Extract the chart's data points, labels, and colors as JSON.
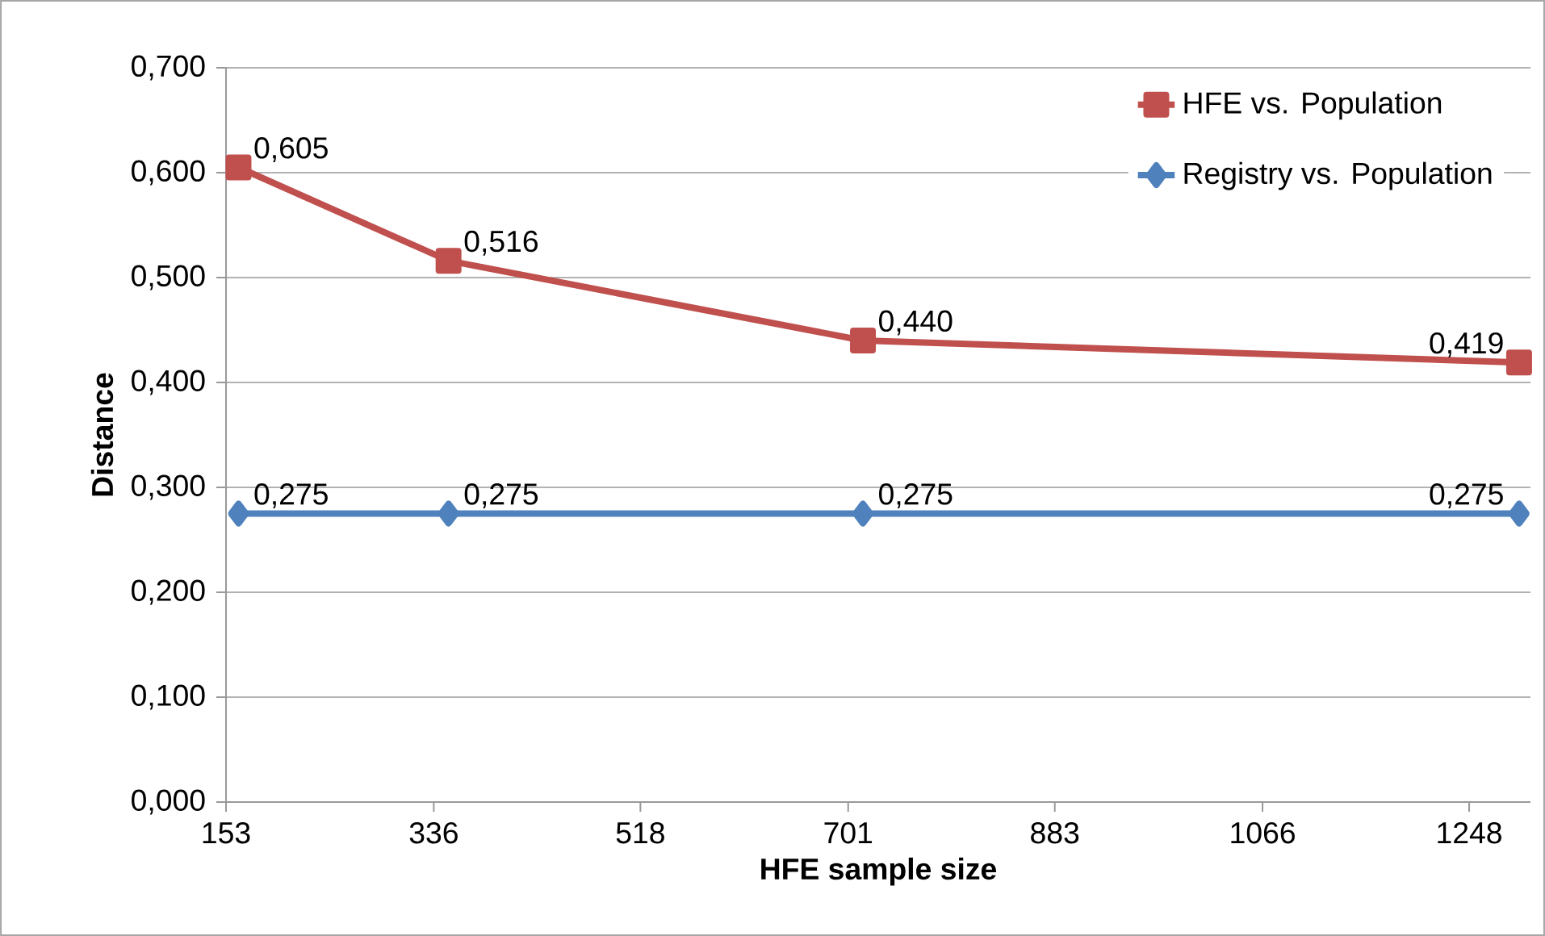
{
  "chart_data": {
    "type": "line",
    "xlabel": "HFE sample size",
    "ylabel": "Distance",
    "xlim": [
      153,
      1302
    ],
    "xticks": [
      153,
      336,
      518,
      701,
      883,
      1066,
      1248
    ],
    "ylim": [
      0,
      0.7
    ],
    "yticks": [
      {
        "value": 0,
        "label": "0,000"
      },
      {
        "value": 0.1,
        "label": "0,100"
      },
      {
        "value": 0.2,
        "label": "0,200"
      },
      {
        "value": 0.3,
        "label": "0,300"
      },
      {
        "value": 0.4,
        "label": "0,400"
      },
      {
        "value": 0.5,
        "label": "0,500"
      },
      {
        "value": 0.6,
        "label": "0,600"
      },
      {
        "value": 0.7,
        "label": "0,700"
      }
    ],
    "grid": "y",
    "legend": "top right",
    "series": [
      {
        "name": "HFE vs. Population",
        "color": "#c0504d",
        "marker": "square",
        "x": [
          164,
          349,
          714,
          1292
        ],
        "values": [
          0.605,
          0.516,
          0.44,
          0.419
        ],
        "value_labels": [
          "0,605",
          "0,516",
          "0,440",
          "0,419"
        ]
      },
      {
        "name": "Registry vs. Population",
        "color": "#4f81bd",
        "marker": "diamond",
        "x": [
          164,
          349,
          714,
          1292
        ],
        "values": [
          0.275,
          0.275,
          0.275,
          0.275
        ],
        "value_labels": [
          "0,275",
          "0,275",
          "0,275",
          "0,275"
        ]
      }
    ]
  }
}
